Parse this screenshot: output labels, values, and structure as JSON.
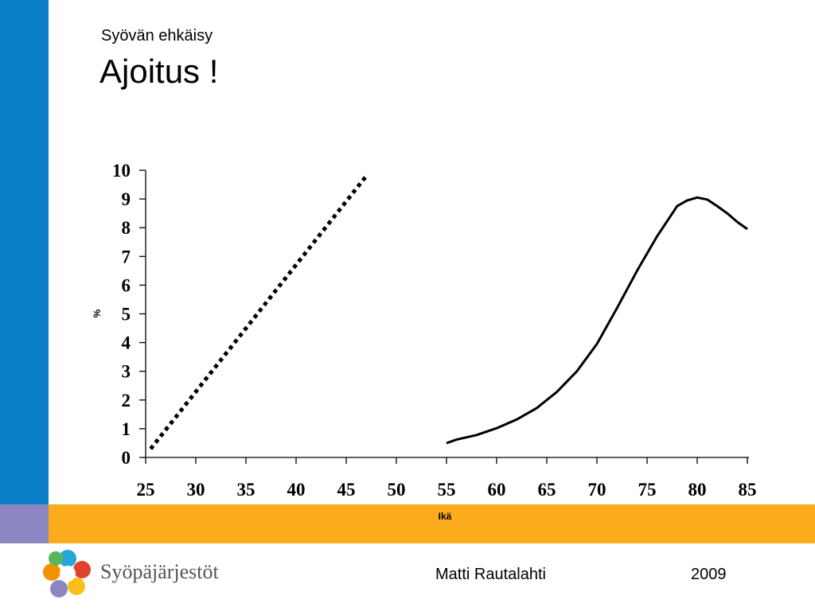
{
  "slide": {
    "subtitle": "Syövän ehkäisy",
    "title": "Ajoitus !"
  },
  "colors": {
    "left_bar": "#0a7ec6",
    "left_bar_bottom": "#8b85c1",
    "band": "#fbac1c"
  },
  "chart_data": {
    "type": "line",
    "xlabel": "Ikä",
    "ylabel": "%",
    "xlim": [
      25,
      85
    ],
    "ylim": [
      0,
      10
    ],
    "x_ticks": [
      25,
      30,
      35,
      40,
      45,
      50,
      55,
      60,
      65,
      70,
      75,
      80,
      85
    ],
    "y_ticks": [
      0,
      1,
      2,
      3,
      4,
      5,
      6,
      7,
      8,
      9,
      10
    ],
    "grid": false,
    "series": [
      {
        "style": "dotted",
        "x": [
          25.5,
          47
        ],
        "y": [
          0.3,
          9.8
        ]
      },
      {
        "style": "solid",
        "x": [
          55,
          56,
          58,
          60,
          62,
          64,
          66,
          68,
          70,
          72,
          74,
          76,
          78,
          79,
          80,
          81,
          82,
          83,
          84,
          85
        ],
        "y": [
          0.5,
          0.62,
          0.78,
          1.02,
          1.32,
          1.72,
          2.28,
          3.0,
          3.95,
          5.2,
          6.5,
          7.7,
          8.75,
          8.95,
          9.05,
          8.98,
          8.75,
          8.5,
          8.2,
          7.95
        ]
      }
    ]
  },
  "footer": {
    "author": "Matti Rautalahti",
    "year": "2009",
    "logo_text": "Syöpäjärjestöt",
    "logo_icon": "multicolor-circles-logo"
  }
}
